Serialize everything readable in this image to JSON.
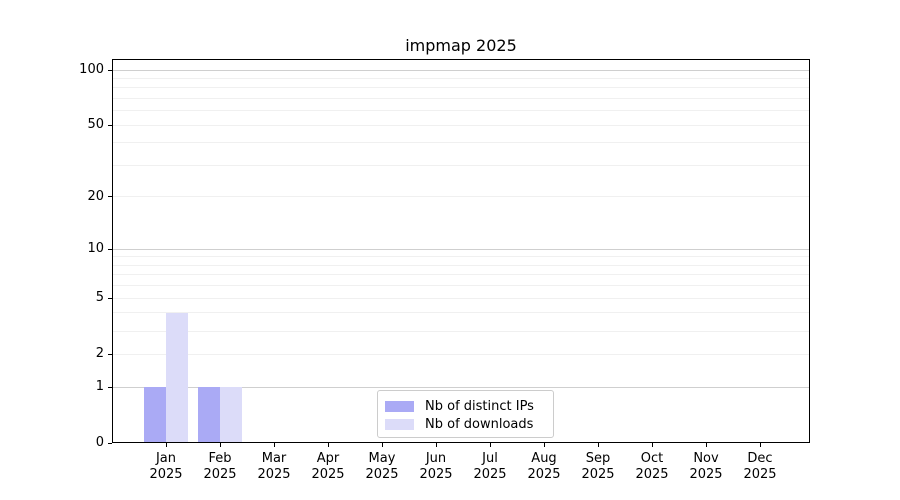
{
  "chart_data": {
    "type": "bar",
    "title": "impmap 2025",
    "year_label": "2025",
    "categories": [
      "Jan",
      "Feb",
      "Mar",
      "Apr",
      "May",
      "Jun",
      "Jul",
      "Aug",
      "Sep",
      "Oct",
      "Nov",
      "Dec"
    ],
    "series": [
      {
        "name": "Nb of distinct IPs",
        "color": "#aaaaf5",
        "values": [
          1,
          1,
          0,
          0,
          0,
          0,
          0,
          0,
          0,
          0,
          0,
          0
        ]
      },
      {
        "name": "Nb of downloads",
        "color": "#dcdcf9",
        "values": [
          4,
          1,
          0,
          0,
          0,
          0,
          0,
          0,
          0,
          0,
          0,
          0
        ]
      }
    ],
    "yscale": "log1p",
    "y_tick_values": [
      0,
      1,
      2,
      5,
      10,
      20,
      50,
      100
    ],
    "y_tick_labels": [
      "0",
      "1",
      "2",
      "5",
      "10",
      "20",
      "50",
      "100"
    ],
    "y_gridlines_major": [
      1,
      10,
      100
    ],
    "y_gridlines_minor": [
      2,
      3,
      4,
      5,
      6,
      7,
      8,
      9,
      20,
      30,
      40,
      50,
      60,
      70,
      80,
      90
    ],
    "ylim": [
      0,
      115
    ],
    "grid": "horizontal",
    "legend_position": "lower-center-inside",
    "colors": {
      "grid_major": "#cfcfcf",
      "grid_minor": "#f0f0f0",
      "axis": "#000000",
      "background": "#ffffff"
    }
  }
}
